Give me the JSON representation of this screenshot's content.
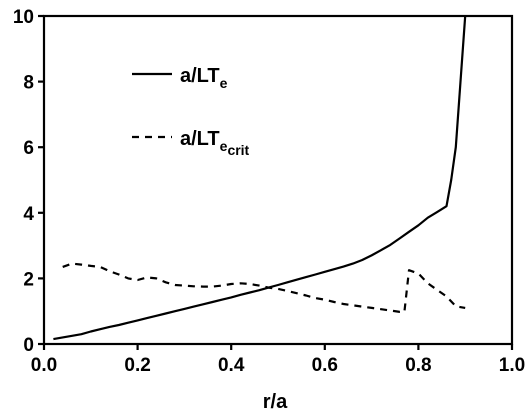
{
  "chart_data": {
    "type": "line",
    "title": "",
    "xlabel": "r/a",
    "ylabel": "",
    "xlim": [
      0.0,
      1.0
    ],
    "ylim": [
      0,
      10
    ],
    "x_ticks": [
      "0.0",
      "0.2",
      "0.4",
      "0.6",
      "0.8",
      "1.0"
    ],
    "y_ticks": [
      "0",
      "2",
      "4",
      "6",
      "8",
      "10"
    ],
    "grid": false,
    "legend_position": "top-left",
    "series": [
      {
        "name_main": "a/LT",
        "name_sub": "e",
        "style": "solid",
        "color": "#000000",
        "x": [
          0.02,
          0.04,
          0.06,
          0.08,
          0.1,
          0.12,
          0.14,
          0.16,
          0.18,
          0.2,
          0.22,
          0.24,
          0.26,
          0.28,
          0.3,
          0.32,
          0.34,
          0.36,
          0.38,
          0.4,
          0.42,
          0.44,
          0.46,
          0.48,
          0.5,
          0.52,
          0.54,
          0.56,
          0.58,
          0.6,
          0.62,
          0.64,
          0.66,
          0.68,
          0.7,
          0.72,
          0.74,
          0.76,
          0.78,
          0.8,
          0.82,
          0.84,
          0.86,
          0.87,
          0.88,
          0.89,
          0.9
        ],
        "y": [
          0.15,
          0.2,
          0.25,
          0.3,
          0.38,
          0.45,
          0.52,
          0.58,
          0.65,
          0.72,
          0.79,
          0.86,
          0.93,
          1.0,
          1.07,
          1.14,
          1.21,
          1.28,
          1.35,
          1.42,
          1.5,
          1.57,
          1.64,
          1.72,
          1.8,
          1.88,
          1.96,
          2.04,
          2.12,
          2.2,
          2.28,
          2.36,
          2.45,
          2.56,
          2.7,
          2.86,
          3.02,
          3.22,
          3.42,
          3.62,
          3.85,
          4.02,
          4.2,
          5.0,
          6.0,
          8.0,
          10.0
        ]
      },
      {
        "name_main": "a/LT",
        "name_sub": "e",
        "name_subsub": "crit",
        "style": "dashed",
        "color": "#000000",
        "x": [
          0.04,
          0.06,
          0.08,
          0.1,
          0.12,
          0.14,
          0.16,
          0.18,
          0.2,
          0.22,
          0.24,
          0.26,
          0.28,
          0.3,
          0.32,
          0.34,
          0.36,
          0.38,
          0.4,
          0.42,
          0.44,
          0.46,
          0.48,
          0.5,
          0.52,
          0.54,
          0.56,
          0.58,
          0.6,
          0.62,
          0.64,
          0.66,
          0.68,
          0.7,
          0.72,
          0.74,
          0.76,
          0.77,
          0.78,
          0.8,
          0.82,
          0.84,
          0.86,
          0.88,
          0.9
        ],
        "y": [
          2.35,
          2.45,
          2.42,
          2.38,
          2.35,
          2.22,
          2.12,
          2.0,
          1.95,
          2.03,
          2.0,
          1.88,
          1.8,
          1.78,
          1.76,
          1.75,
          1.75,
          1.78,
          1.83,
          1.85,
          1.83,
          1.78,
          1.72,
          1.68,
          1.62,
          1.55,
          1.48,
          1.4,
          1.35,
          1.28,
          1.22,
          1.18,
          1.14,
          1.1,
          1.06,
          1.02,
          0.98,
          0.98,
          2.25,
          2.15,
          1.85,
          1.65,
          1.45,
          1.15,
          1.1
        ]
      }
    ]
  }
}
